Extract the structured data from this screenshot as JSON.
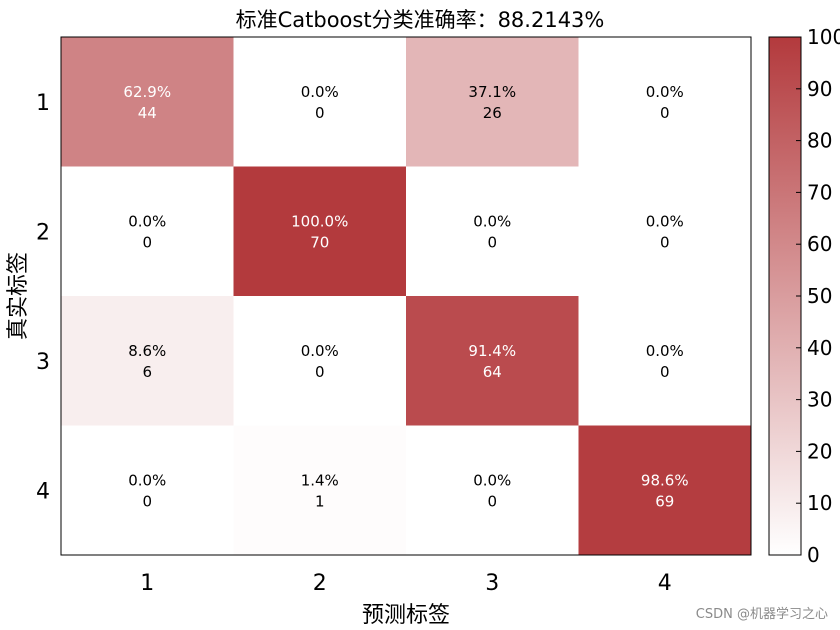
{
  "chart_data": {
    "type": "heatmap",
    "title": "标准Catboost分类准确率：88.2143%",
    "xlabel": "预测标签",
    "ylabel": "真实标签",
    "x_categories": [
      "1",
      "2",
      "3",
      "4"
    ],
    "y_categories": [
      "1",
      "2",
      "3",
      "4"
    ],
    "percent_labels": [
      [
        "62.9%",
        "0.0%",
        "37.1%",
        "0.0%"
      ],
      [
        "0.0%",
        "100.0%",
        "0.0%",
        "0.0%"
      ],
      [
        "8.6%",
        "0.0%",
        "91.4%",
        "0.0%"
      ],
      [
        "0.0%",
        "1.4%",
        "0.0%",
        "98.6%"
      ]
    ],
    "percent_values": [
      [
        62.9,
        0.0,
        37.1,
        0.0
      ],
      [
        0.0,
        100.0,
        0.0,
        0.0
      ],
      [
        8.6,
        0.0,
        91.4,
        0.0
      ],
      [
        0.0,
        1.4,
        0.0,
        98.6
      ]
    ],
    "counts": [
      [
        44,
        0,
        26,
        0
      ],
      [
        0,
        70,
        0,
        0
      ],
      [
        6,
        0,
        64,
        0
      ],
      [
        0,
        1,
        0,
        69
      ]
    ],
    "colorbar": {
      "range": [
        0,
        100
      ],
      "ticks": [
        "0",
        "10",
        "20",
        "30",
        "40",
        "50",
        "60",
        "70",
        "80",
        "90",
        "100"
      ],
      "color_low": "#ffffff",
      "color_high": "#b33a3d"
    },
    "legend": "none",
    "grid": false
  },
  "watermark": "CSDN @机器学习之心"
}
